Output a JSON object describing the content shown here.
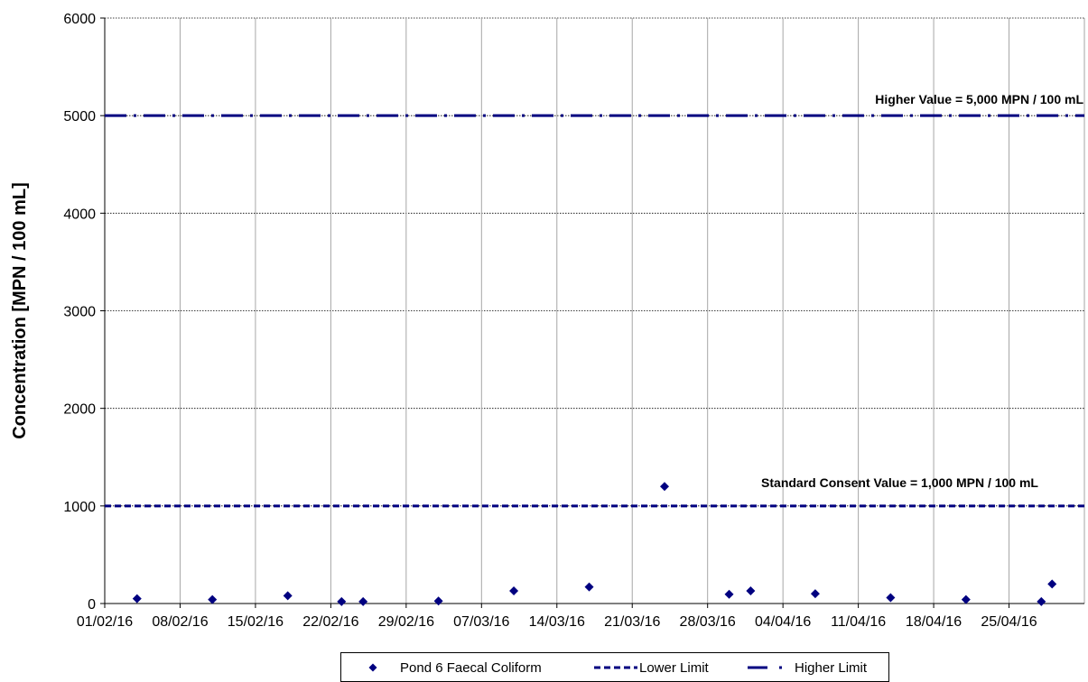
{
  "chart_data": {
    "type": "scatter",
    "title": "",
    "xlabel": "",
    "ylabel": "Concentration [MPN / 100 mL]",
    "ylim": [
      0,
      6000
    ],
    "yticks": [
      0,
      1000,
      2000,
      3000,
      4000,
      5000,
      6000
    ],
    "xlim": [
      "2016-02-01",
      "2016-05-02"
    ],
    "xticks": [
      {
        "date": "2016-02-01",
        "label": "01/02/16"
      },
      {
        "date": "2016-02-08",
        "label": "08/02/16"
      },
      {
        "date": "2016-02-15",
        "label": "15/02/16"
      },
      {
        "date": "2016-02-22",
        "label": "22/02/16"
      },
      {
        "date": "2016-02-29",
        "label": "29/02/16"
      },
      {
        "date": "2016-03-07",
        "label": "07/03/16"
      },
      {
        "date": "2016-03-14",
        "label": "14/03/16"
      },
      {
        "date": "2016-03-21",
        "label": "21/03/16"
      },
      {
        "date": "2016-03-28",
        "label": "28/03/16"
      },
      {
        "date": "2016-04-04",
        "label": "04/04/16"
      },
      {
        "date": "2016-04-11",
        "label": "11/04/16"
      },
      {
        "date": "2016-04-18",
        "label": "18/04/16"
      },
      {
        "date": "2016-04-25",
        "label": "25/04/16"
      }
    ],
    "grid": true,
    "legend_position": "bottom",
    "series": [
      {
        "name": "Pond 6 Faecal Coliform",
        "kind": "points",
        "marker": "diamond",
        "color": "#000080",
        "points": [
          {
            "x": "2016-02-04",
            "y": 50
          },
          {
            "x": "2016-02-11",
            "y": 40
          },
          {
            "x": "2016-02-18",
            "y": 80
          },
          {
            "x": "2016-02-23",
            "y": 20
          },
          {
            "x": "2016-02-25",
            "y": 20
          },
          {
            "x": "2016-03-03",
            "y": 25
          },
          {
            "x": "2016-03-10",
            "y": 130
          },
          {
            "x": "2016-03-17",
            "y": 170
          },
          {
            "x": "2016-03-24",
            "y": 1200
          },
          {
            "x": "2016-03-30",
            "y": 95
          },
          {
            "x": "2016-04-01",
            "y": 130
          },
          {
            "x": "2016-04-07",
            "y": 100
          },
          {
            "x": "2016-04-14",
            "y": 60
          },
          {
            "x": "2016-04-21",
            "y": 40
          },
          {
            "x": "2016-04-28",
            "y": 20
          },
          {
            "x": "2016-04-29",
            "y": 200
          }
        ]
      },
      {
        "name": "Lower Limit",
        "kind": "hline",
        "y": 1000,
        "style": "dashed",
        "color": "#000080",
        "annotation": "Standard Consent Value = 1,000 MPN / 100 mL"
      },
      {
        "name": "Higher Limit",
        "kind": "hline",
        "y": 5000,
        "style": "dash-dot",
        "color": "#000080",
        "annotation": "Higher Value = 5,000 MPN / 100 mL"
      }
    ]
  }
}
